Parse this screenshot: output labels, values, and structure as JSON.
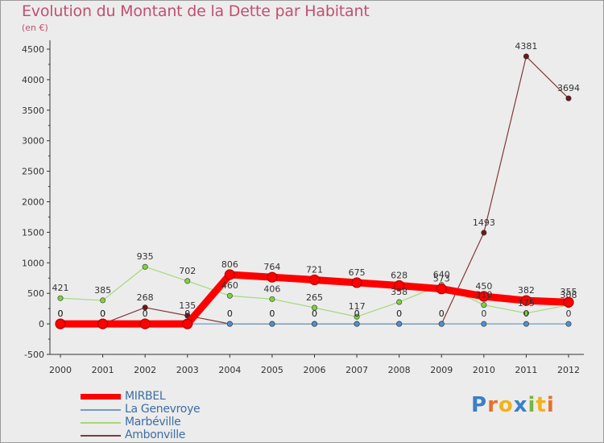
{
  "chart_data": {
    "type": "line",
    "title": "Evolution du Montant de la Dette par Habitant",
    "ylabel": "(en €)",
    "categories": [
      "2000",
      "2001",
      "2002",
      "2003",
      "2004",
      "2005",
      "2006",
      "2007",
      "2008",
      "2009",
      "2010",
      "2011",
      "2012"
    ],
    "yticks": [
      -500,
      0,
      500,
      1000,
      1500,
      2000,
      2500,
      3000,
      3500,
      4000,
      4500
    ],
    "ylim": [
      -500,
      4500
    ],
    "series": [
      {
        "name": "MIRBEL",
        "color": "#ff0000",
        "marker": "#ff0000",
        "values": [
          0,
          0,
          0,
          0,
          806,
          764,
          721,
          675,
          628,
          573,
          450,
          382,
          355
        ],
        "labels": [
          "0",
          "0",
          "0",
          "0",
          "806",
          "764",
          "721",
          "675",
          "628",
          "573",
          "450",
          "382",
          "355"
        ]
      },
      {
        "name": "La Genevroye",
        "color": "#6f9cc4",
        "marker": "#4f8fd0",
        "values": [
          0,
          0,
          0,
          0,
          0,
          0,
          0,
          0,
          0,
          0,
          0,
          0,
          0
        ],
        "labels": [
          "0",
          "0",
          "0",
          "0",
          "0",
          "0",
          "0",
          "0",
          "0",
          "0",
          "0",
          "0",
          "0"
        ]
      },
      {
        "name": "Marbéville",
        "color": "#a6d87b",
        "marker": "#7fd040",
        "values": [
          421,
          385,
          935,
          702,
          460,
          406,
          265,
          117,
          358,
          640,
          310,
          175,
          308
        ],
        "labels": [
          "421",
          "385",
          "935",
          "702",
          "460",
          "406",
          "265",
          "117",
          "358",
          "640",
          "310",
          "175",
          "308"
        ]
      },
      {
        "name": "Ambonville",
        "color": "#7e3a3a",
        "marker": "#6a1818",
        "values": [
          0,
          0,
          268,
          135,
          0,
          0,
          0,
          0,
          0,
          0,
          1493,
          4381,
          3694
        ],
        "labels": [
          "0",
          "0",
          "268",
          "135",
          "0",
          "0",
          "0",
          "0",
          "0",
          "0",
          "1493",
          "4381",
          "3694"
        ]
      }
    ]
  },
  "logo_text": "Proxiti"
}
